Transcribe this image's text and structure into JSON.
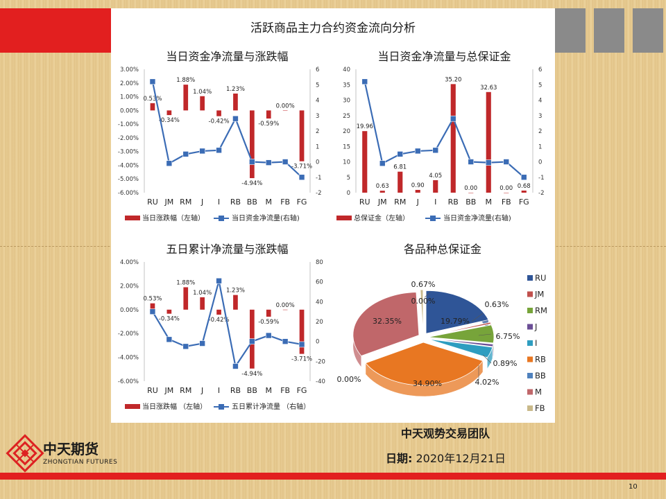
{
  "page_title": "活跃商品主力合约资金流向分析",
  "footer": {
    "company_cn": "中天期货",
    "company_en": "ZHONGTIAN FUTURES",
    "team": "中天观势交易团队",
    "date_label": "日期:",
    "date_value": "2020年12月21日",
    "page_number": "10"
  },
  "colors": {
    "red_bar": "#c0282a",
    "blue_line": "#3b6cb5",
    "accent": "#e21f1f"
  },
  "chart_data": [
    {
      "id": "c1",
      "type": "bar+line",
      "title": "当日资金净流量与涨跌幅",
      "categories": [
        "RU",
        "JM",
        "RM",
        "J",
        "I",
        "RB",
        "BB",
        "M",
        "FB",
        "FG"
      ],
      "left_axis": {
        "min": -6,
        "max": 3,
        "step": 1,
        "suffix": "%",
        "decimals": 2
      },
      "right_axis": {
        "min": -2,
        "max": 6,
        "step": 1
      },
      "series": [
        {
          "name": "当日涨跌幅（左轴）",
          "kind": "bar",
          "axis": "left",
          "values": [
            0.53,
            -0.34,
            1.88,
            1.04,
            -0.42,
            1.23,
            -4.94,
            -0.59,
            0.0,
            -3.71
          ]
        },
        {
          "name": "当日资金净流量(右轴)",
          "kind": "line",
          "axis": "right",
          "values": [
            5.2,
            -0.1,
            0.5,
            0.7,
            0.75,
            2.8,
            0.0,
            -0.05,
            0.0,
            -1.0
          ]
        }
      ],
      "bar_labels": [
        "0.53%",
        "-0.34%",
        "1.88%",
        "1.04%",
        "-0.42%",
        "1.23%",
        "-4.94%",
        "-0.59%",
        "0.00%",
        "-3.71%"
      ]
    },
    {
      "id": "c2",
      "type": "bar+line",
      "title": "当日资金净流量与总保证金",
      "categories": [
        "RU",
        "JM",
        "RM",
        "J",
        "I",
        "RB",
        "BB",
        "M",
        "FB",
        "FG"
      ],
      "left_axis": {
        "min": 0,
        "max": 40,
        "step": 5,
        "suffix": "",
        "decimals": 0
      },
      "right_axis": {
        "min": -2,
        "max": 6,
        "step": 1
      },
      "series": [
        {
          "name": "总保证金（左轴）",
          "kind": "bar",
          "axis": "left",
          "values": [
            19.96,
            0.63,
            6.81,
            0.9,
            4.05,
            35.2,
            0.0,
            32.63,
            0.0,
            0.68
          ]
        },
        {
          "name": "当日资金净流量(右轴)",
          "kind": "line",
          "axis": "right",
          "values": [
            5.2,
            -0.1,
            0.5,
            0.7,
            0.75,
            2.8,
            0.0,
            -0.05,
            0.0,
            -1.0
          ]
        }
      ],
      "bar_labels": [
        "19.96",
        "0.63",
        "6.81",
        "0.90",
        "4.05",
        "35.20",
        "0.00",
        "32.63",
        "0.00",
        "0.68"
      ]
    },
    {
      "id": "c3",
      "type": "bar+line",
      "title": "五日累计净流量与涨跌幅",
      "categories": [
        "RU",
        "JM",
        "RM",
        "J",
        "I",
        "RB",
        "BB",
        "M",
        "FB",
        "FG"
      ],
      "left_axis": {
        "min": -6,
        "max": 4,
        "step": 2,
        "suffix": "%",
        "decimals": 2
      },
      "right_axis": {
        "min": -40,
        "max": 80,
        "step": 20
      },
      "series": [
        {
          "name": "当日涨跌幅 （左轴）",
          "kind": "bar",
          "axis": "left",
          "values": [
            0.53,
            -0.34,
            1.88,
            1.04,
            -0.42,
            1.23,
            -4.94,
            -0.59,
            0.0,
            -3.71
          ]
        },
        {
          "name": "五日累计净流量 （右轴）",
          "kind": "line",
          "axis": "right",
          "values": [
            30,
            2,
            -5,
            -2,
            61,
            -25,
            0,
            6,
            0,
            -3
          ]
        }
      ],
      "bar_labels": [
        "0.53%",
        "-0.34%",
        "1.88%",
        "1.04%",
        "-0.42%",
        "1.23%",
        "-4.94%",
        "-0.59%",
        "0.00%",
        "-3.71%"
      ]
    },
    {
      "id": "c4",
      "type": "pie",
      "title": "各品种总保证金",
      "categories": [
        "RU",
        "JM",
        "RM",
        "J",
        "I",
        "RB",
        "BB",
        "M",
        "FB"
      ],
      "values": [
        19.79,
        0.63,
        6.75,
        0.89,
        4.02,
        34.9,
        0.0,
        32.35,
        0.67
      ],
      "labels": [
        "19.79%",
        "0.63%",
        "6.75%",
        "0.89%",
        "4.02%",
        "34.90%",
        "0.00%",
        "32.35%",
        "0.67%"
      ],
      "colors": [
        "#2f5597",
        "#c0504d",
        "#77a43a",
        "#6b4e96",
        "#2e9dc0",
        "#e87722",
        "#4f81bd",
        "#c0676a",
        "#c9b98a"
      ],
      "legend_position": "right",
      "extra_label": "0.00%"
    }
  ]
}
